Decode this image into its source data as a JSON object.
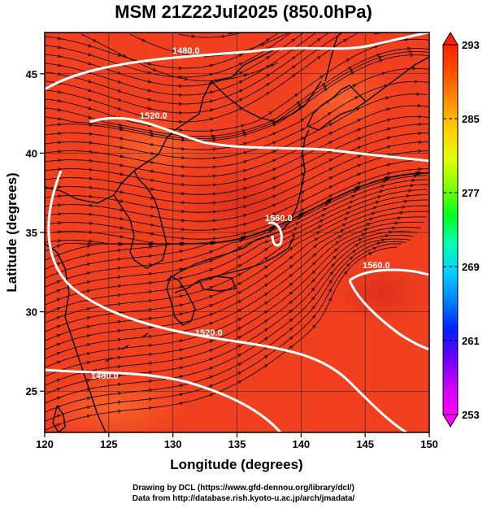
{
  "title": "MSM 21Z22Jul2025 (850.0hPa)",
  "xlabel": "Longitude (degrees)",
  "ylabel": "Latitude  (degrees)",
  "credits": [
    "Drawing by DCL (https://www.gfd-dennou.org/library/dcl/)",
    "Data from http://database.rish.kyoto-u.ac.jp/arch/jmadata/"
  ],
  "map": {
    "lon_range": [
      120,
      150
    ],
    "lat_range": [
      22.4,
      47.6
    ],
    "x_ticks": [
      "120",
      "125",
      "130",
      "135",
      "140",
      "145",
      "150"
    ],
    "y_ticks": [
      "25",
      "30",
      "35",
      "40",
      "45"
    ],
    "field_color": "#f04020",
    "contour_color": "#ffffff",
    "contour_labels": [
      "1480.0",
      "1520.0",
      "1520.0",
      "1480.0",
      "1560.0",
      "1560.0"
    ]
  },
  "colorbar": {
    "min": 253,
    "max": 293,
    "tick_labels": [
      "293",
      "285",
      "277",
      "269",
      "261",
      "253"
    ],
    "colors": [
      "#ff00ff",
      "#cc00ff",
      "#6a00ff",
      "#0020ff",
      "#0080ff",
      "#00d0ff",
      "#00ffb0",
      "#00ff20",
      "#80ff00",
      "#e0ff00",
      "#ffd000",
      "#ff9000",
      "#ff5000",
      "#ff2000"
    ]
  }
}
